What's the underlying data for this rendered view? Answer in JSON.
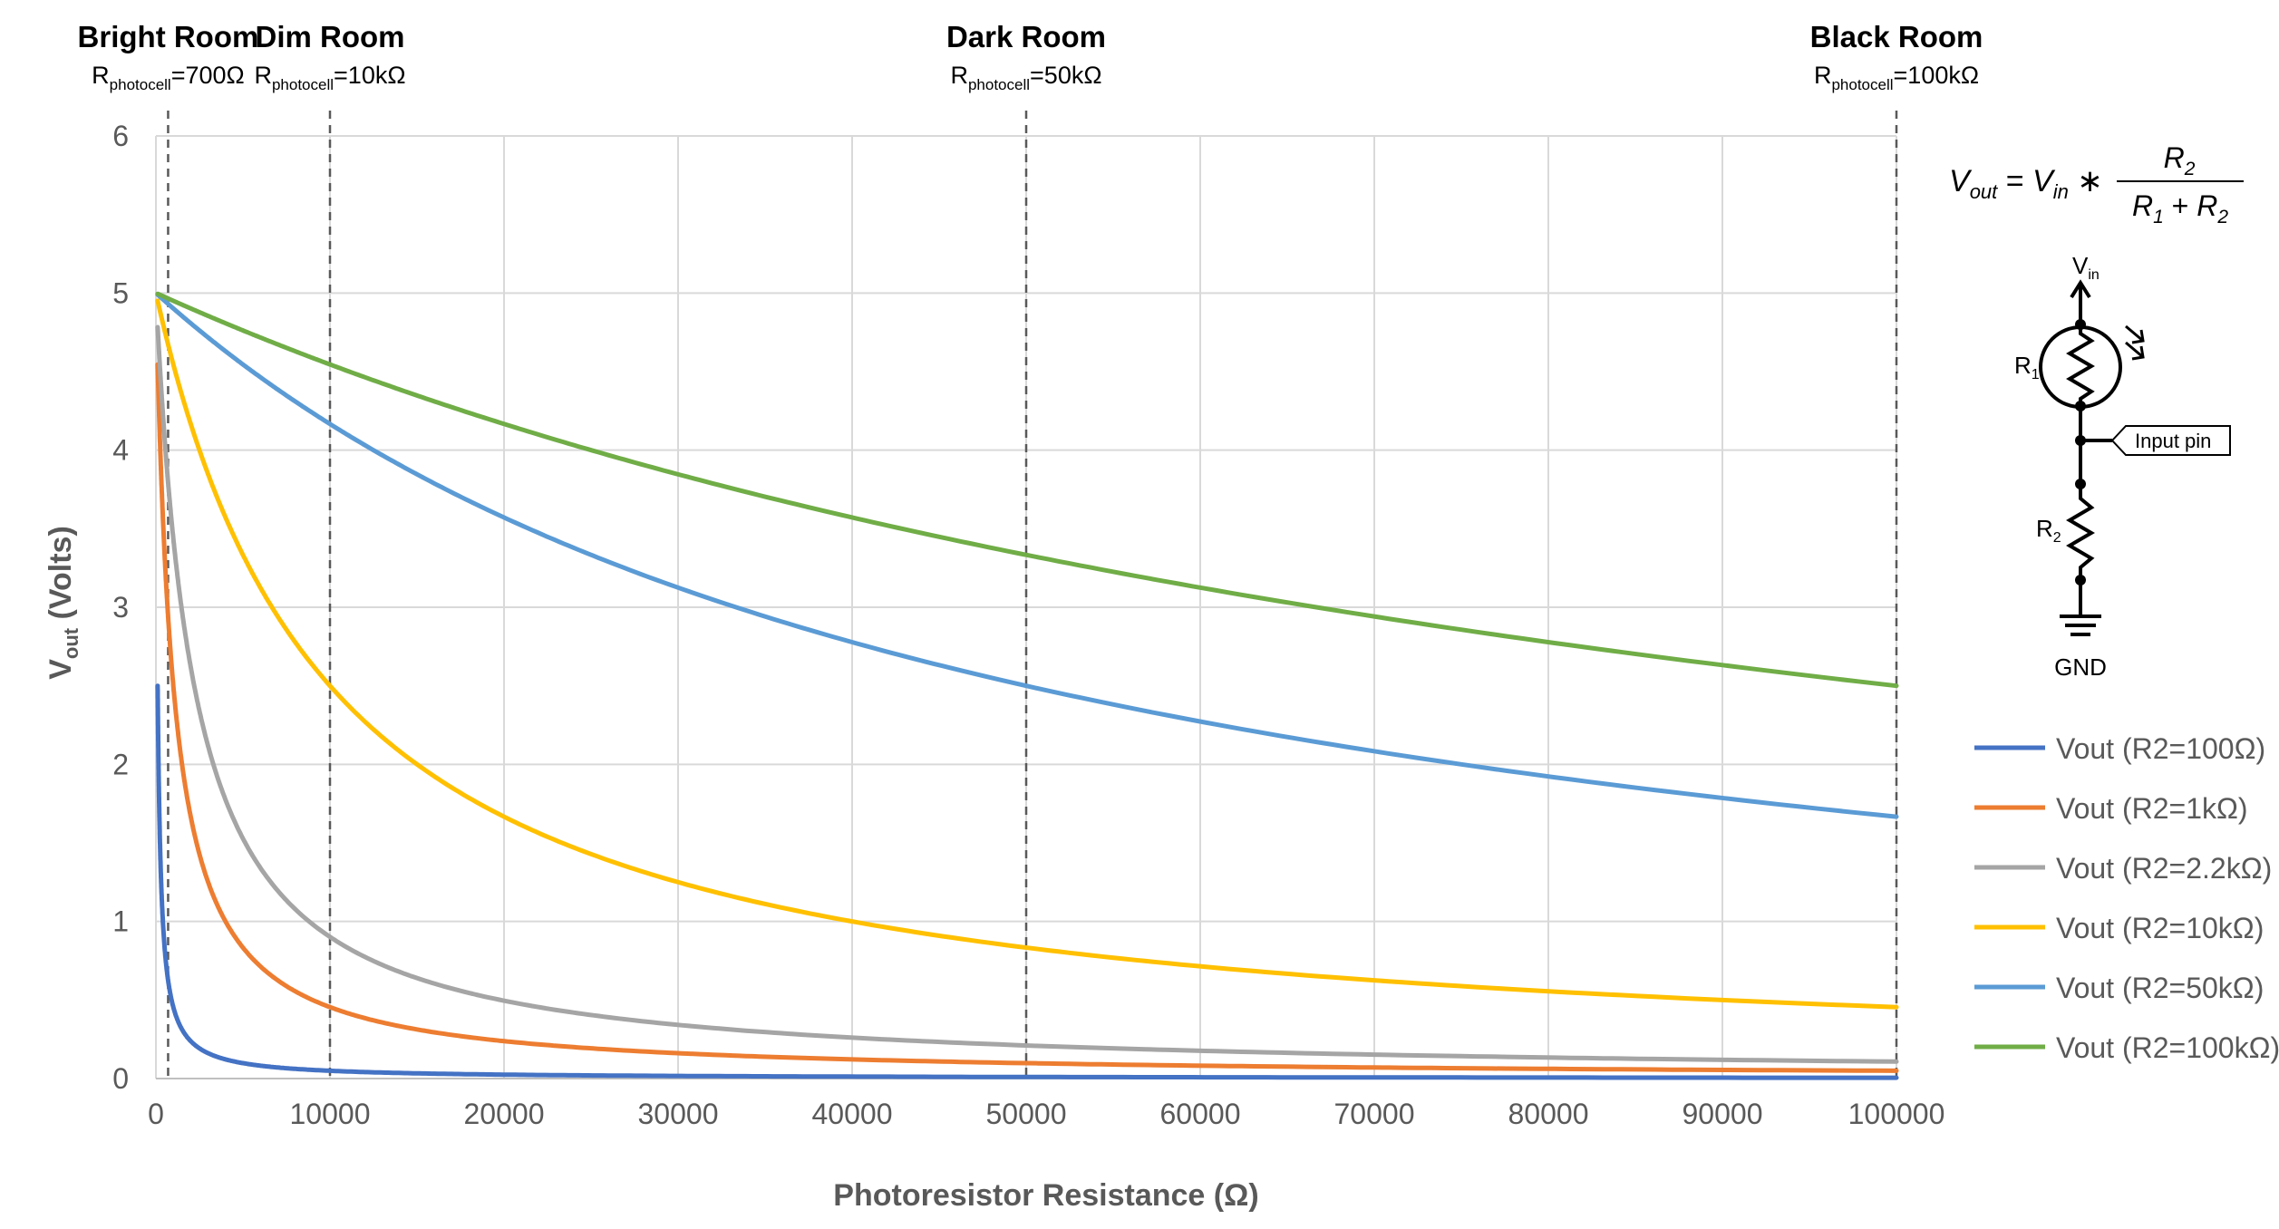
{
  "chart_data": {
    "type": "line",
    "xlabel": "Photoresistor Resistance (Ω)",
    "ylabel_main": "V",
    "ylabel_sub": "out",
    "ylabel_tail": " (Volts)",
    "xlim": [
      0,
      100000
    ],
    "ylim": [
      0,
      6
    ],
    "x_ticks": [
      0,
      10000,
      20000,
      30000,
      40000,
      50000,
      60000,
      70000,
      80000,
      90000,
      100000
    ],
    "y_ticks": [
      0,
      1,
      2,
      3,
      4,
      5,
      6
    ],
    "grid": true,
    "legend_position": "right",
    "vin": 5,
    "series": [
      {
        "name": "Vout (R2=100Ω)",
        "r2": 100,
        "color": "#4472C4",
        "x_start": 100
      },
      {
        "name": "Vout (R2=1kΩ)",
        "r2": 1000,
        "color": "#ED7D31",
        "x_start": 100
      },
      {
        "name": "Vout (R2=2.2kΩ)",
        "r2": 2200,
        "color": "#A5A5A5",
        "x_start": 100
      },
      {
        "name": "Vout (R2=10kΩ)",
        "r2": 10000,
        "color": "#FFC000",
        "x_start": 100
      },
      {
        "name": "Vout (R2=50kΩ)",
        "r2": 50000,
        "color": "#5B9BD5",
        "x_start": 100
      },
      {
        "name": "Vout (R2=100kΩ)",
        "r2": 100000,
        "color": "#70AD47",
        "x_start": 100
      }
    ],
    "reference_lines": [
      {
        "x": 700,
        "title": "Bright Room",
        "sub_r": "R",
        "sub_small": "photocell",
        "sub_val": "=700Ω"
      },
      {
        "x": 10000,
        "title": "Dim Room",
        "sub_r": "R",
        "sub_small": "photocell",
        "sub_val": "=10kΩ"
      },
      {
        "x": 50000,
        "title": "Dark Room",
        "sub_r": "R",
        "sub_small": "photocell",
        "sub_val": "=50kΩ"
      },
      {
        "x": 100000,
        "title": "Black Room",
        "sub_r": "R",
        "sub_small": "photocell",
        "sub_val": "=100kΩ"
      }
    ]
  },
  "formula": {
    "lhs": "V",
    "lhs_sub": "out",
    "eq": " = ",
    "vin": "V",
    "vin_sub": "in",
    "times": " ∗ ",
    "num": "R",
    "num_sub": "2",
    "den_a": "R",
    "den_a_sub": "1",
    "plus": " + ",
    "den_b": "R",
    "den_b_sub": "2"
  },
  "circuit": {
    "vin_label": "V",
    "vin_sub": "in",
    "r1_label": "R",
    "r1_sub": "1",
    "r2_label": "R",
    "r2_sub": "2",
    "pin_label": "Input pin",
    "gnd_label": "GND"
  }
}
